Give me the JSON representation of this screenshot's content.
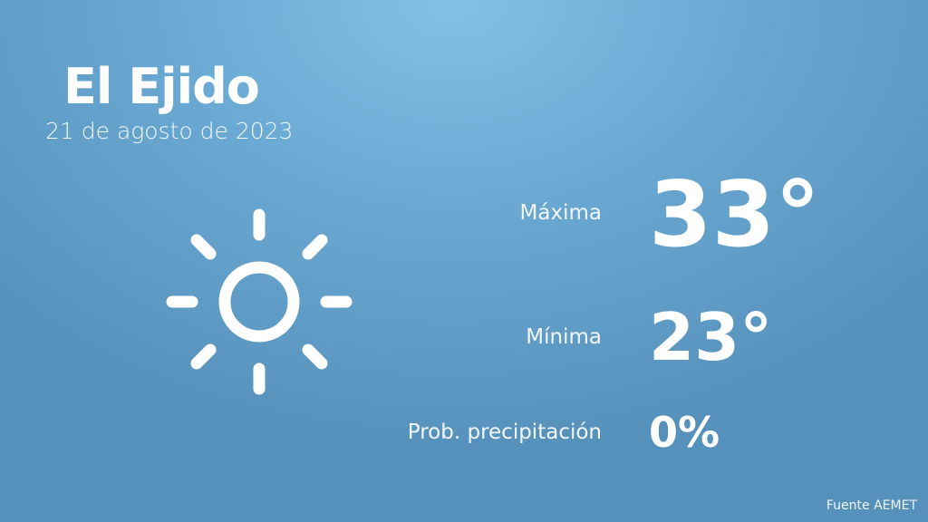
{
  "city": "El Ejido",
  "date": "21 de agosto de 2023",
  "icon": "sun-icon",
  "max": {
    "label": "Máxima",
    "value": "33°"
  },
  "min": {
    "label": "Mínima",
    "value": "23°"
  },
  "precip": {
    "label": "Prob. precipitación",
    "value": "0%"
  },
  "source": "Fuente AEMET"
}
